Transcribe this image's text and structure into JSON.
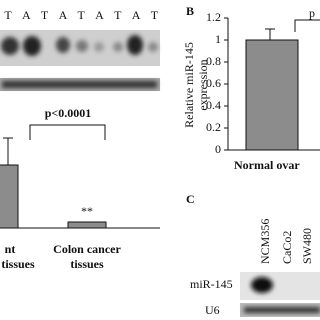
{
  "panel_a": {
    "lanes": [
      "T",
      "A",
      "T",
      "A",
      "T",
      "A",
      "T",
      "A",
      "T"
    ],
    "p_value": "p<0.0001",
    "significance": "**",
    "categories": [
      [
        "nt",
        "tissues"
      ],
      [
        "Colon cancer",
        "tissues"
      ]
    ]
  },
  "chart_data": {
    "type": "bar",
    "panel_label": "B",
    "ylabel": [
      "Relative miR-145",
      "expression"
    ],
    "categories": [
      "Normal ovar"
    ],
    "series": [
      {
        "color": "#8c8c8c",
        "values": [
          1
        ],
        "errors": [
          0.1
        ]
      }
    ],
    "annotation": "p",
    "ylim": [
      0,
      1.2
    ],
    "yticks": [
      0,
      0.2,
      0.4,
      0.6,
      0.8,
      1,
      1.2
    ]
  },
  "panel_c": {
    "label": "C",
    "lanes": [
      "NCM356",
      "CaCo2",
      "SW480"
    ],
    "rows": [
      "miR-145",
      "U6"
    ]
  }
}
